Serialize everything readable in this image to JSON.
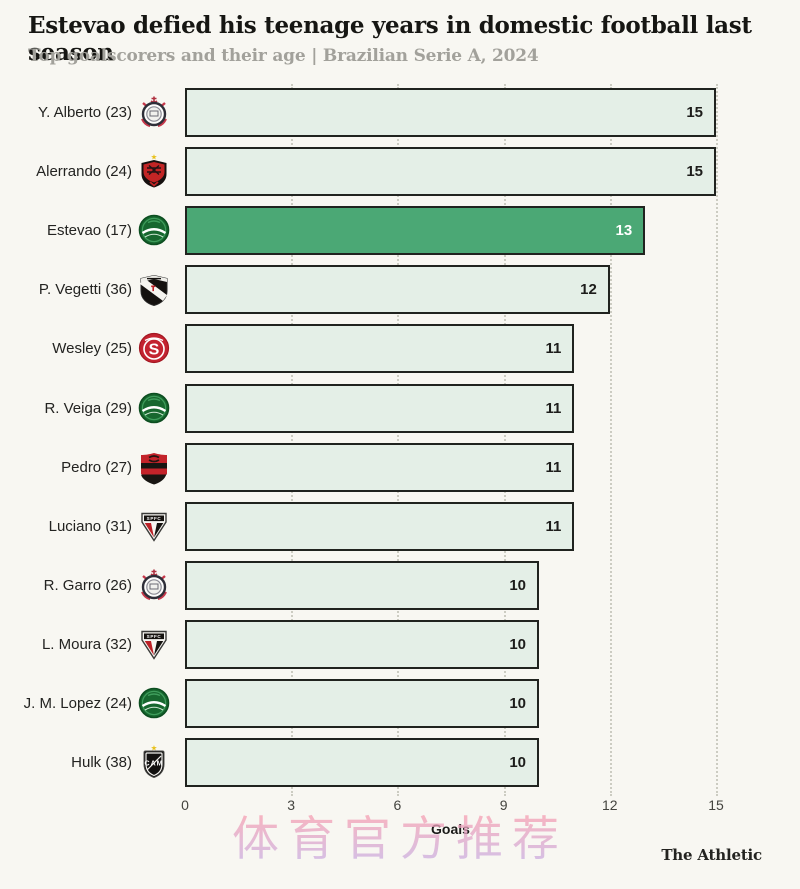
{
  "header": {
    "title": "Estevao defied his teenage years in domestic football last season",
    "subtitle": "Top goalscorers and their age | Brazilian Serie A, 2024"
  },
  "chart_data": {
    "type": "bar",
    "orientation": "horizontal",
    "title": "Estevao defied his teenage years in domestic football last season",
    "subtitle": "Top goalscorers and their age | Brazilian Serie A, 2024",
    "xlabel": "Goals",
    "ylabel": "",
    "xlim": [
      0,
      15
    ],
    "x_ticks": [
      0,
      3,
      6,
      9,
      12,
      15
    ],
    "grid": "vertical-dotted",
    "highlight_category": "Estevao (17)",
    "categories": [
      "Y. Alberto (23)",
      "Alerrando (24)",
      "Estevao (17)",
      "P. Vegetti (36)",
      "Wesley (25)",
      "R. Veiga (29)",
      "Pedro (27)",
      "Luciano (31)",
      "R. Garro (26)",
      "L. Moura (32)",
      "J. M. Lopez (24)",
      "Hulk (38)"
    ],
    "values": [
      15,
      15,
      13,
      12,
      11,
      11,
      11,
      11,
      10,
      10,
      10,
      10
    ],
    "players": [
      {
        "name": "Y. Alberto (23)",
        "goals": 15,
        "club": "corinthians",
        "icon": "corinthians-crest-icon",
        "highlight": false
      },
      {
        "name": "Alerrando (24)",
        "goals": 15,
        "club": "vitoria",
        "icon": "vitoria-crest-icon",
        "highlight": false
      },
      {
        "name": "Estevao (17)",
        "goals": 13,
        "club": "palmeiras",
        "icon": "palmeiras-crest-icon",
        "highlight": true
      },
      {
        "name": "P. Vegetti (36)",
        "goals": 12,
        "club": "vasco",
        "icon": "vasco-da-gama-crest-icon",
        "highlight": false
      },
      {
        "name": "Wesley (25)",
        "goals": 11,
        "club": "internacional",
        "icon": "internacional-crest-icon",
        "highlight": false
      },
      {
        "name": "R. Veiga (29)",
        "goals": 11,
        "club": "palmeiras",
        "icon": "palmeiras-crest-icon",
        "highlight": false
      },
      {
        "name": "Pedro (27)",
        "goals": 11,
        "club": "flamengo",
        "icon": "flamengo-crest-icon",
        "highlight": false
      },
      {
        "name": "Luciano (31)",
        "goals": 11,
        "club": "sao-paulo",
        "icon": "sao-paulo-crest-icon",
        "highlight": false
      },
      {
        "name": "R. Garro (26)",
        "goals": 10,
        "club": "corinthians",
        "icon": "corinthians-crest-icon",
        "highlight": false
      },
      {
        "name": "L. Moura (32)",
        "goals": 10,
        "club": "sao-paulo",
        "icon": "sao-paulo-crest-icon",
        "highlight": false
      },
      {
        "name": "J. M. Lopez (24)",
        "goals": 10,
        "club": "palmeiras",
        "icon": "palmeiras-crest-icon",
        "highlight": false
      },
      {
        "name": "Hulk (38)",
        "goals": 10,
        "club": "atletico-mineiro",
        "icon": "atletico-mineiro-crest-icon",
        "highlight": false
      }
    ]
  },
  "axis": {
    "label": "Goals",
    "ticks": [
      "0",
      "3",
      "6",
      "9",
      "12",
      "15"
    ]
  },
  "footer": {
    "brand": "The Athletic",
    "watermark": "体育官方推荐"
  },
  "colors": {
    "background": "#f8f7f2",
    "bar_fill": "#e4efe7",
    "bar_border": "#20231f",
    "highlight_green": "#4ba875",
    "value_text": "#1d1d1b",
    "highlight_value_text": "#ffffff",
    "subtitle_gray": "#a2a19b",
    "gridline_gray": "#ccccc2",
    "watermark_pink": "#f49fb4",
    "watermark_lavender": "#c9aee2"
  }
}
